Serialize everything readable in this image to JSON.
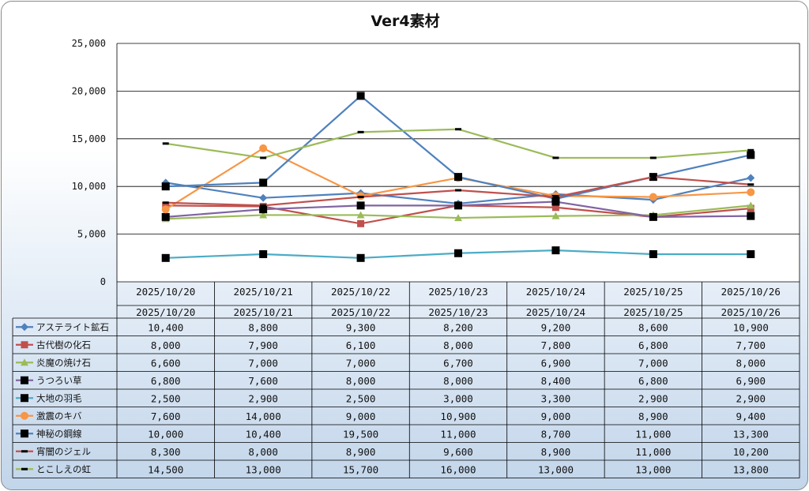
{
  "chart_data": {
    "type": "line",
    "title": "Ver4素材",
    "xlabel": "",
    "ylabel": "",
    "ylim": [
      0,
      25000
    ],
    "yticks": [
      "0",
      "5,000",
      "10,000",
      "15,000",
      "20,000",
      "25,000"
    ],
    "ytick_values": [
      0,
      5000,
      10000,
      15000,
      20000,
      25000
    ],
    "grid": true,
    "legend": "data-table-below",
    "categories": [
      "2025/10/20",
      "2025/10/21",
      "2025/10/22",
      "2025/10/23",
      "2025/10/24",
      "2025/10/25",
      "2025/10/26"
    ],
    "series": [
      {
        "name": "アステライト鉱石",
        "color": "#4f81bd",
        "marker": "diamond",
        "values": [
          10400,
          8800,
          9300,
          8200,
          9200,
          8600,
          10900
        ],
        "labels": [
          "10,400",
          "8,800",
          "9,300",
          "8,200",
          "9,200",
          "8,600",
          "10,900"
        ]
      },
      {
        "name": "古代樹の化石",
        "color": "#c0504d",
        "marker": "square",
        "values": [
          8000,
          7900,
          6100,
          8000,
          7800,
          6800,
          7700
        ],
        "labels": [
          "8,000",
          "7,900",
          "6,100",
          "8,000",
          "7,800",
          "6,800",
          "7,700"
        ]
      },
      {
        "name": "炎魔の焼け石",
        "color": "#9bbb59",
        "marker": "triangle",
        "values": [
          6600,
          7000,
          7000,
          6700,
          6900,
          7000,
          8000
        ],
        "labels": [
          "6,600",
          "7,000",
          "7,000",
          "6,700",
          "6,900",
          "7,000",
          "8,000"
        ]
      },
      {
        "name": "うつろい草",
        "color": "#8064a2",
        "marker": "blacksquare",
        "values": [
          6800,
          7600,
          8000,
          8000,
          8400,
          6800,
          6900
        ],
        "labels": [
          "6,800",
          "7,600",
          "8,000",
          "8,000",
          "8,400",
          "6,800",
          "6,900"
        ]
      },
      {
        "name": "大地の羽毛",
        "color": "#4bacc6",
        "marker": "blacksquare",
        "values": [
          2500,
          2900,
          2500,
          3000,
          3300,
          2900,
          2900
        ],
        "labels": [
          "2,500",
          "2,900",
          "2,500",
          "3,000",
          "3,300",
          "2,900",
          "2,900"
        ]
      },
      {
        "name": "激震のキバ",
        "color": "#f79646",
        "marker": "circle",
        "values": [
          7600,
          14000,
          9000,
          10900,
          9000,
          8900,
          9400
        ],
        "labels": [
          "7,600",
          "14,000",
          "9,000",
          "10,900",
          "9,000",
          "8,900",
          "9,400"
        ]
      },
      {
        "name": "神秘の鋼線",
        "color": "#4f81bd",
        "marker": "blacksquare",
        "values": [
          10000,
          10400,
          19500,
          11000,
          8700,
          11000,
          13300
        ],
        "labels": [
          "10,000",
          "10,400",
          "19,500",
          "11,000",
          "8,700",
          "11,000",
          "13,300"
        ]
      },
      {
        "name": "宵闇のジェル",
        "color": "#c0504d",
        "marker": "dash",
        "values": [
          8300,
          8000,
          8900,
          9600,
          8900,
          11000,
          10200
        ],
        "labels": [
          "8,300",
          "8,000",
          "8,900",
          "9,600",
          "8,900",
          "11,000",
          "10,200"
        ]
      },
      {
        "name": "とこしえの虹",
        "color": "#9bbb59",
        "marker": "dash",
        "values": [
          14500,
          13000,
          15700,
          16000,
          13000,
          13000,
          13800
        ],
        "labels": [
          "14,500",
          "13,000",
          "15,700",
          "16,000",
          "13,000",
          "13,000",
          "13,800"
        ]
      }
    ]
  }
}
